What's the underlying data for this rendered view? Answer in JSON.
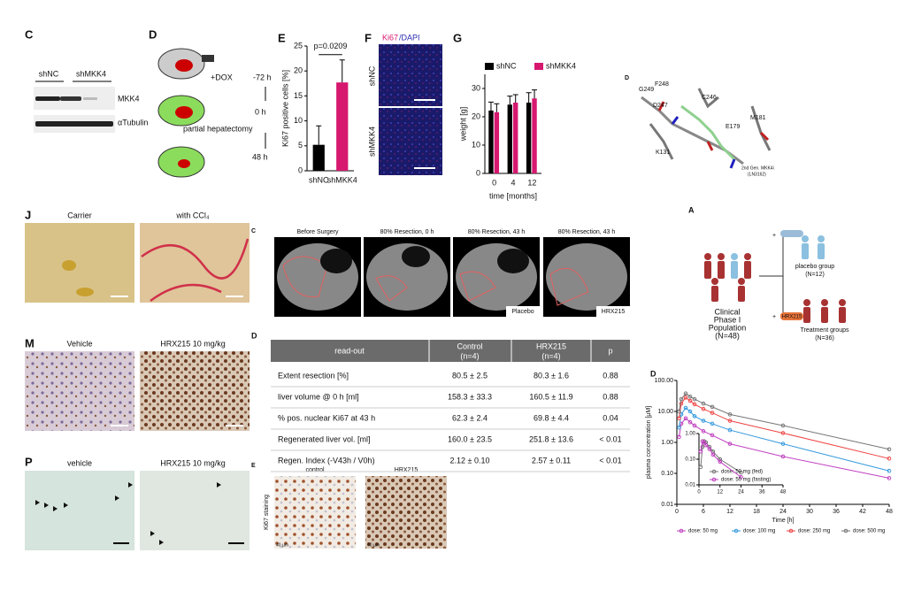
{
  "panel_letters": [
    "C",
    "D",
    "E",
    "F",
    "G",
    "D",
    "J",
    "C",
    "A",
    "M",
    "D",
    "E",
    "P",
    "D"
  ],
  "blot": {
    "lanes": [
      "shNC",
      "shMKK4"
    ],
    "bands": [
      "MKK4",
      "αTubulin"
    ]
  },
  "scheme": {
    "dox": "+DOX",
    "times": [
      "-72 h",
      "0 h",
      "48 h"
    ],
    "step": "partial hepatectomy"
  },
  "ki67_images": {
    "title_a": "Ki67",
    "title_b": "/DAPI",
    "rows": [
      "shNC",
      "shMKK4"
    ]
  },
  "structure": {
    "residues": [
      "G249",
      "F248",
      "C246",
      "D247",
      "M181",
      "E179",
      "K131"
    ],
    "compound": [
      "2nd Gen. MKK4i",
      "(LN3162)"
    ]
  },
  "histology_j": [
    "Carrier",
    "with CCl₄"
  ],
  "ct": {
    "titles": [
      "Before Surgery",
      "80% Resection, 0 h",
      "80% Resection, 43 h",
      "80% Resection, 43 h"
    ],
    "tags": [
      "Placebo",
      "HRX215"
    ]
  },
  "trial": {
    "population": [
      "Clinical",
      "Phase I",
      "Population",
      "(N=48)"
    ],
    "plus": "+",
    "drug": "HRX215",
    "placebo": [
      "placebo group",
      "(N=12)"
    ],
    "treatment": [
      "Treatment groups",
      "(N=36)"
    ]
  },
  "histology_m": [
    "Vehicle",
    "HRX215 10 mg/kg"
  ],
  "histology_p": [
    "vehicle",
    "HRX215 10 mg/kg"
  ],
  "table": {
    "header": [
      "read-out",
      "Control",
      "(n=4)",
      "HRX215",
      "(n=4)",
      "p"
    ],
    "rows": [
      [
        "Extent resection [%]",
        "80.5 ± 2.5",
        "80.3 ± 1.6",
        "0.88"
      ],
      [
        "liver volume @ 0 h [ml]",
        "158.3 ± 33.3",
        "160.5 ± 11.9",
        "0.88"
      ],
      [
        "% pos. nuclear Ki67 at 43 h",
        "62.3 ± 2.4",
        "69.8 ± 4.4",
        "0.04"
      ],
      [
        "Regenerated liver vol. [ml]",
        "160.0 ± 23.5",
        "251.8 ± 13.6",
        "< 0.01"
      ],
      [
        "Regen. Index (-V43h / V0h)",
        "2.12 ± 0.10",
        "2.57 ± 0.11",
        "< 0.01"
      ]
    ]
  },
  "staining": {
    "titles": [
      "control",
      "HRX215"
    ],
    "axis": "Ki67 staining",
    "scale": "40 µm"
  },
  "chart_data": [
    {
      "type": "bar",
      "y_label": "Ki67 positive cells [%]",
      "categories": [
        "shNC",
        "shMKK4"
      ],
      "values": [
        5.2,
        17.7
      ],
      "errors": [
        3.8,
        4.5
      ],
      "colors": [
        "#000000",
        "#d6186f"
      ],
      "ylim": [
        0,
        25
      ],
      "yticks": [
        0,
        5,
        10,
        15,
        20,
        25
      ],
      "annotation": "p=0.0209"
    },
    {
      "type": "bar",
      "y_label": "weight [g]",
      "x_label": "time [months]",
      "categories": [
        "0",
        "4",
        "12"
      ],
      "series": [
        {
          "name": "shNC",
          "color": "#000000",
          "values": [
            22.2,
            24.3,
            25.0
          ],
          "errors": [
            3,
            3,
            3.5
          ]
        },
        {
          "name": "shMKK4",
          "color": "#d6186f",
          "values": [
            21.6,
            25.0,
            26.5
          ],
          "errors": [
            3,
            2.8,
            3
          ]
        }
      ],
      "ylim": [
        0,
        35
      ],
      "yticks": [
        0,
        10,
        20,
        30
      ]
    },
    {
      "type": "line",
      "y_label": "plasma concentration [µM]",
      "x_label": "Time [h]",
      "log_y": true,
      "legend": "bottom",
      "x": [
        0.5,
        1,
        2,
        3,
        4,
        6,
        8,
        12,
        24,
        48
      ],
      "series": [
        {
          "name": "dose: 50 mg",
          "color": "#c040c0",
          "values": [
            1.5,
            4,
            6,
            4.5,
            3.5,
            2.3,
            1.7,
            0.9,
            0.35,
            0.07
          ]
        },
        {
          "name": "dose: 100 mg",
          "color": "#3399dd",
          "values": [
            3,
            8,
            13,
            10,
            7,
            5,
            4,
            2.5,
            0.9,
            0.12
          ]
        },
        {
          "name": "dose: 250 mg",
          "color": "#ee4444",
          "values": [
            6,
            18,
            28,
            22,
            17,
            12,
            9,
            5,
            2,
            0.3
          ]
        },
        {
          "name": "dose: 500 mg",
          "color": "#777777",
          "values": [
            10,
            25,
            38,
            30,
            25,
            18,
            14,
            8,
            3.5,
            0.6
          ]
        }
      ],
      "xlim": [
        0,
        48
      ],
      "xticks": [
        0,
        6,
        12,
        18,
        24,
        30,
        36,
        42,
        48
      ],
      "ylim": [
        0.01,
        100
      ],
      "yticks": [
        {
          "value": 0.01,
          "label": "0.01"
        },
        {
          "value": 0.1,
          "label": "0.10"
        },
        {
          "value": 1,
          "label": "1.00"
        },
        {
          "value": 10,
          "label": "10.00"
        },
        {
          "value": 100,
          "label": "100.00"
        }
      ]
    },
    {
      "type": "line",
      "log_y": true,
      "legend": "inside",
      "x": [
        1,
        2,
        3,
        4,
        6,
        8,
        12,
        24
      ],
      "series": [
        {
          "name": "dose: 50 mg (fed)",
          "color": "#777777",
          "values": [
            0.05,
            0.3,
            0.5,
            0.45,
            0.3,
            0.2,
            0.1,
            0.03
          ]
        },
        {
          "name": "dose: 50 mg (fasting)",
          "color": "#c040c0",
          "values": [
            0.2,
            0.5,
            0.45,
            0.35,
            0.25,
            0.15,
            0.08,
            0.02
          ]
        }
      ],
      "xlim": [
        0,
        48
      ],
      "xticks": [
        0,
        12,
        24,
        36,
        48
      ],
      "ylim": [
        0.01,
        1
      ],
      "yticks": [
        {
          "value": 0.01,
          "label": "0.01"
        },
        {
          "value": 0.1,
          "label": "0.10"
        },
        {
          "value": 1,
          "label": "1.00"
        }
      ]
    }
  ]
}
